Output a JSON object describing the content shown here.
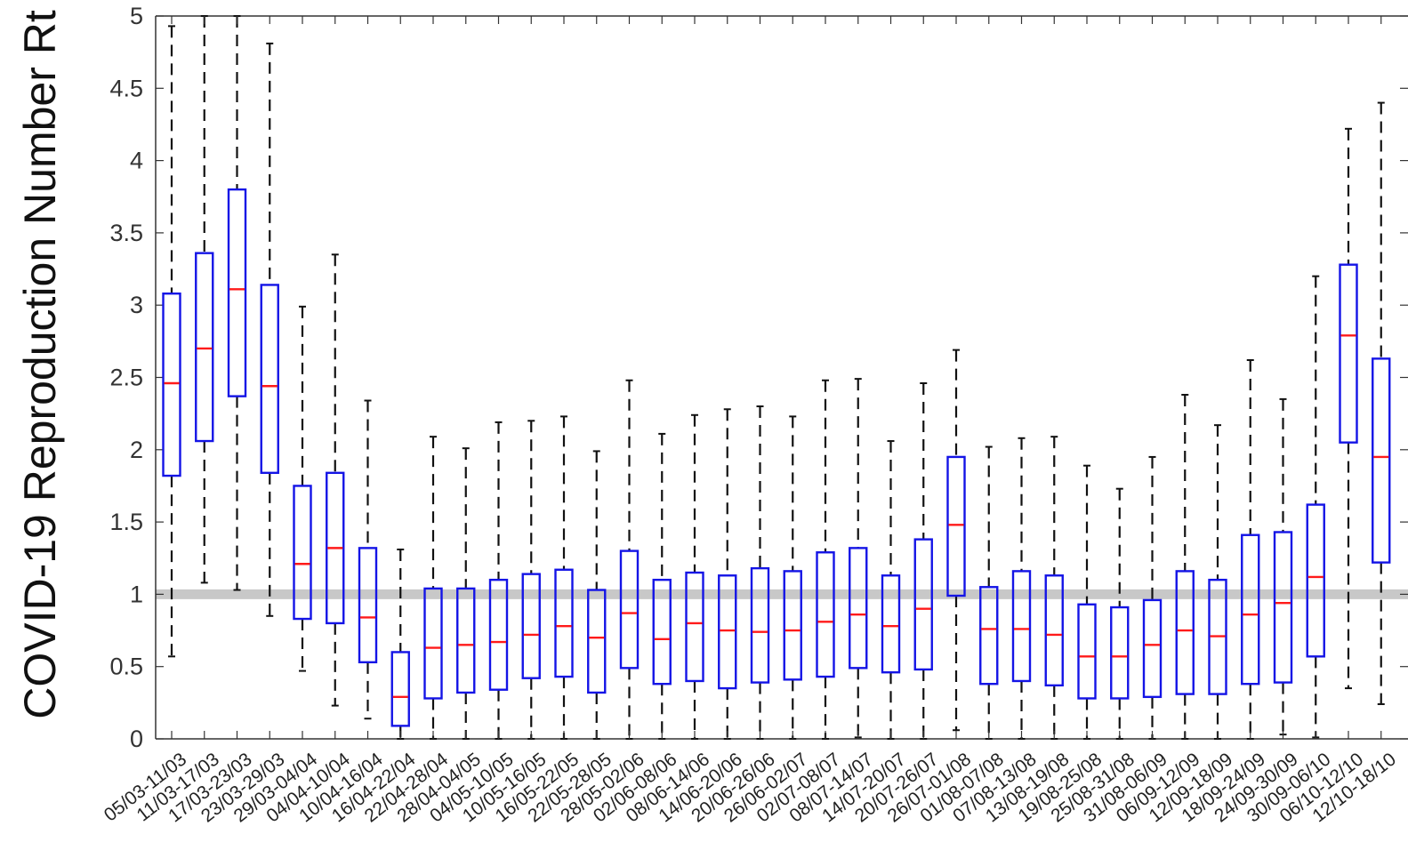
{
  "chart_data": {
    "type": "box",
    "title": "",
    "xlabel": "",
    "ylabel": "COVID-19 Reproduction Number Rt",
    "ylim": [
      0,
      5
    ],
    "yticks": [
      "0",
      "0.5",
      "1",
      "1.5",
      "2",
      "2.5",
      "3",
      "3.5",
      "4",
      "4.5",
      "5"
    ],
    "reference_line": {
      "y": 1.0,
      "color": "#c8c8c8"
    },
    "colors": {
      "box": "#1414e6",
      "median": "#ff1a1a",
      "whisker": "#111111",
      "axis": "#333333"
    },
    "grid": false,
    "categories": [
      "05/03-11/03",
      "11/03-17/03",
      "17/03-23/03",
      "23/03-29/03",
      "29/03-04/04",
      "04/04-10/04",
      "10/04-16/04",
      "16/04-22/04",
      "22/04-28/04",
      "28/04-04/05",
      "04/05-10/05",
      "10/05-16/05",
      "16/05-22/05",
      "22/05-28/05",
      "28/05-02/06",
      "02/06-08/06",
      "08/06-14/06",
      "14/06-20/06",
      "20/06-26/06",
      "26/06-02/07",
      "02/07-08/07",
      "08/07-14/07",
      "14/07-20/07",
      "20/07-26/07",
      "26/07-01/08",
      "01/08-07/08",
      "07/08-13/08",
      "13/08-19/08",
      "19/08-25/08",
      "25/08-31/08",
      "31/08-06/09",
      "06/09-12/09",
      "12/09-18/09",
      "18/09-24/09",
      "24/09-30/09",
      "30/09-06/10",
      "06/10-12/10",
      "12/10-18/10"
    ],
    "boxes": [
      {
        "min": 0.57,
        "q1": 1.82,
        "median": 2.46,
        "q3": 3.08,
        "max": 4.93
      },
      {
        "min": 1.08,
        "q1": 2.06,
        "median": 2.7,
        "q3": 3.36,
        "max": 5.0
      },
      {
        "min": 1.03,
        "q1": 2.37,
        "median": 3.11,
        "q3": 3.8,
        "max": 5.0
      },
      {
        "min": 0.85,
        "q1": 1.84,
        "median": 2.44,
        "q3": 3.14,
        "max": 4.81
      },
      {
        "min": 0.47,
        "q1": 0.83,
        "median": 1.21,
        "q3": 1.75,
        "max": 2.99
      },
      {
        "min": 0.23,
        "q1": 0.8,
        "median": 1.32,
        "q3": 1.84,
        "max": 3.35
      },
      {
        "min": 0.14,
        "q1": 0.53,
        "median": 0.84,
        "q3": 1.32,
        "max": 2.34
      },
      {
        "min": 0.0,
        "q1": 0.09,
        "median": 0.29,
        "q3": 0.6,
        "max": 1.31
      },
      {
        "min": 0.0,
        "q1": 0.28,
        "median": 0.63,
        "q3": 1.04,
        "max": 2.09
      },
      {
        "min": 0.0,
        "q1": 0.32,
        "median": 0.65,
        "q3": 1.04,
        "max": 2.01
      },
      {
        "min": 0.0,
        "q1": 0.34,
        "median": 0.67,
        "q3": 1.1,
        "max": 2.19
      },
      {
        "min": 0.0,
        "q1": 0.42,
        "median": 0.72,
        "q3": 1.14,
        "max": 2.2
      },
      {
        "min": 0.0,
        "q1": 0.43,
        "median": 0.78,
        "q3": 1.17,
        "max": 2.23
      },
      {
        "min": 0.0,
        "q1": 0.32,
        "median": 0.7,
        "q3": 1.03,
        "max": 1.99
      },
      {
        "min": 0.0,
        "q1": 0.49,
        "median": 0.87,
        "q3": 1.3,
        "max": 2.48
      },
      {
        "min": 0.0,
        "q1": 0.38,
        "median": 0.69,
        "q3": 1.1,
        "max": 2.11
      },
      {
        "min": 0.0,
        "q1": 0.4,
        "median": 0.8,
        "q3": 1.15,
        "max": 2.24
      },
      {
        "min": 0.0,
        "q1": 0.35,
        "median": 0.75,
        "q3": 1.13,
        "max": 2.28
      },
      {
        "min": 0.0,
        "q1": 0.39,
        "median": 0.74,
        "q3": 1.18,
        "max": 2.3
      },
      {
        "min": 0.0,
        "q1": 0.41,
        "median": 0.75,
        "q3": 1.16,
        "max": 2.23
      },
      {
        "min": 0.0,
        "q1": 0.43,
        "median": 0.81,
        "q3": 1.29,
        "max": 2.48
      },
      {
        "min": 0.01,
        "q1": 0.49,
        "median": 0.86,
        "q3": 1.32,
        "max": 2.49
      },
      {
        "min": 0.0,
        "q1": 0.46,
        "median": 0.78,
        "q3": 1.13,
        "max": 2.06
      },
      {
        "min": 0.0,
        "q1": 0.48,
        "median": 0.9,
        "q3": 1.38,
        "max": 2.46
      },
      {
        "min": 0.06,
        "q1": 0.99,
        "median": 1.48,
        "q3": 1.95,
        "max": 2.69
      },
      {
        "min": 0.0,
        "q1": 0.38,
        "median": 0.76,
        "q3": 1.05,
        "max": 2.02
      },
      {
        "min": 0.0,
        "q1": 0.4,
        "median": 0.76,
        "q3": 1.16,
        "max": 2.08
      },
      {
        "min": 0.0,
        "q1": 0.37,
        "median": 0.72,
        "q3": 1.13,
        "max": 2.09
      },
      {
        "min": 0.0,
        "q1": 0.28,
        "median": 0.57,
        "q3": 0.93,
        "max": 1.89
      },
      {
        "min": 0.0,
        "q1": 0.28,
        "median": 0.57,
        "q3": 0.91,
        "max": 1.73
      },
      {
        "min": 0.0,
        "q1": 0.29,
        "median": 0.65,
        "q3": 0.96,
        "max": 1.95
      },
      {
        "min": 0.0,
        "q1": 0.31,
        "median": 0.75,
        "q3": 1.16,
        "max": 2.38
      },
      {
        "min": 0.0,
        "q1": 0.31,
        "median": 0.71,
        "q3": 1.1,
        "max": 2.17
      },
      {
        "min": 0.0,
        "q1": 0.38,
        "median": 0.86,
        "q3": 1.41,
        "max": 2.62
      },
      {
        "min": 0.03,
        "q1": 0.39,
        "median": 0.94,
        "q3": 1.43,
        "max": 2.35
      },
      {
        "min": 0.01,
        "q1": 0.57,
        "median": 1.12,
        "q3": 1.62,
        "max": 3.2
      },
      {
        "min": 0.35,
        "q1": 2.05,
        "median": 2.79,
        "q3": 3.28,
        "max": 4.22
      },
      {
        "min": 0.24,
        "q1": 1.22,
        "median": 1.95,
        "q3": 2.63,
        "max": 4.4
      }
    ]
  }
}
